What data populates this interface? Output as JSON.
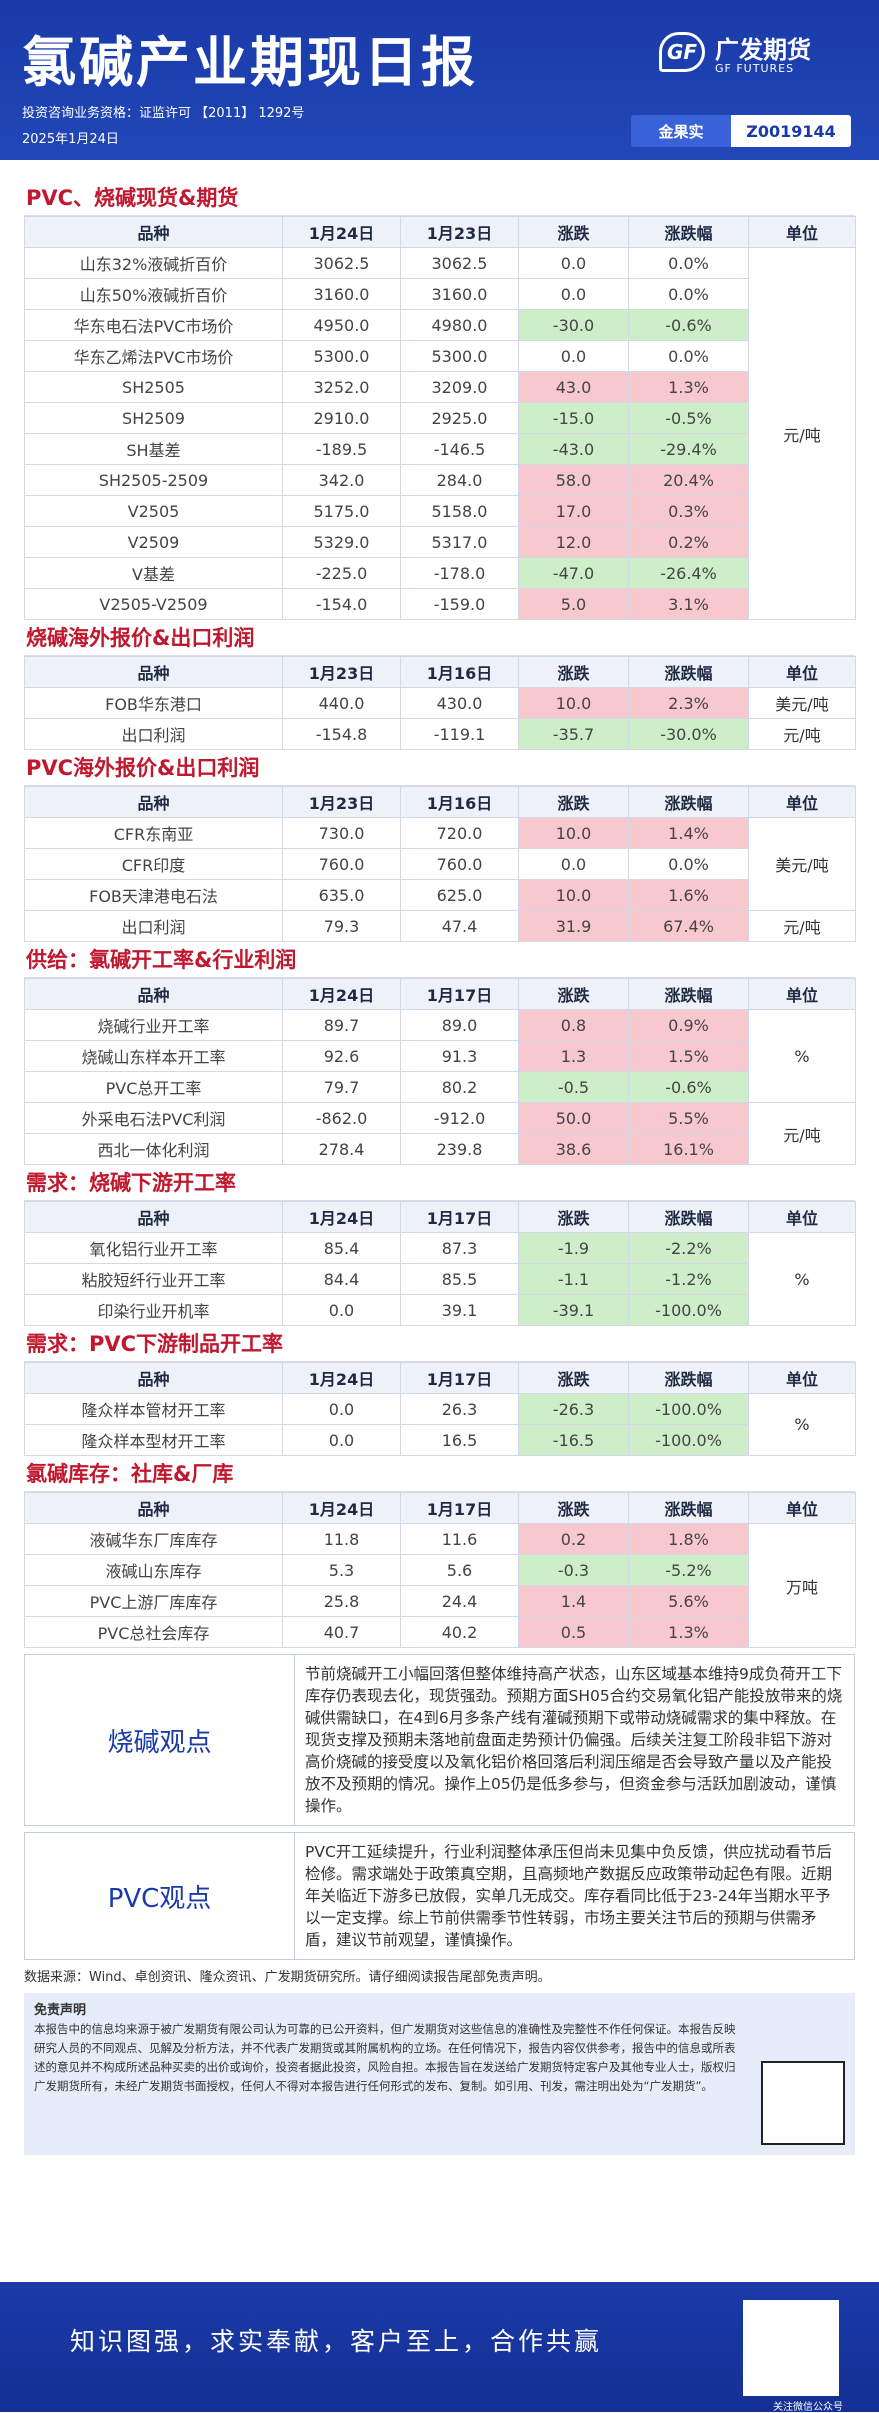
{
  "header": {
    "title": "氯碱产业期现日报",
    "license": "投资咨询业务资格：证监许可 【2011】 1292号",
    "date": "2025年1月24日",
    "logo_cn": "广发期货",
    "logo_en": "GF FUTURES",
    "analyst_label": "金果实",
    "analyst_id": "Z0019144"
  },
  "sections": [
    {
      "title": "PVC、烧碱现货&期货",
      "headers": [
        "品种",
        "1月24日",
        "1月23日",
        "涨跌",
        "涨跌幅",
        "单位"
      ],
      "unit": "元/吨",
      "rows": [
        {
          "name": "山东32%液碱折百价",
          "v1": "3062.5",
          "v2": "3062.5",
          "chg": "0.0",
          "pct": "0.0%",
          "dir": ""
        },
        {
          "name": "山东50%液碱折百价",
          "v1": "3160.0",
          "v2": "3160.0",
          "chg": "0.0",
          "pct": "0.0%",
          "dir": ""
        },
        {
          "name": "华东电石法PVC市场价",
          "v1": "4950.0",
          "v2": "4980.0",
          "chg": "-30.0",
          "pct": "-0.6%",
          "dir": "down"
        },
        {
          "name": "华东乙烯法PVC市场价",
          "v1": "5300.0",
          "v2": "5300.0",
          "chg": "0.0",
          "pct": "0.0%",
          "dir": ""
        },
        {
          "name": "SH2505",
          "v1": "3252.0",
          "v2": "3209.0",
          "chg": "43.0",
          "pct": "1.3%",
          "dir": "up"
        },
        {
          "name": "SH2509",
          "v1": "2910.0",
          "v2": "2925.0",
          "chg": "-15.0",
          "pct": "-0.5%",
          "dir": "down"
        },
        {
          "name": "SH基差",
          "v1": "-189.5",
          "v2": "-146.5",
          "chg": "-43.0",
          "pct": "-29.4%",
          "dir": "down"
        },
        {
          "name": "SH2505-2509",
          "v1": "342.0",
          "v2": "284.0",
          "chg": "58.0",
          "pct": "20.4%",
          "dir": "up"
        },
        {
          "name": "V2505",
          "v1": "5175.0",
          "v2": "5158.0",
          "chg": "17.0",
          "pct": "0.3%",
          "dir": "up"
        },
        {
          "name": "V2509",
          "v1": "5329.0",
          "v2": "5317.0",
          "chg": "12.0",
          "pct": "0.2%",
          "dir": "up"
        },
        {
          "name": "V基差",
          "v1": "-225.0",
          "v2": "-178.0",
          "chg": "-47.0",
          "pct": "-26.4%",
          "dir": "down"
        },
        {
          "name": "V2505-V2509",
          "v1": "-154.0",
          "v2": "-159.0",
          "chg": "5.0",
          "pct": "3.1%",
          "dir": "up"
        }
      ]
    },
    {
      "title": "烧碱海外报价&出口利润",
      "headers": [
        "品种",
        "1月23日",
        "1月16日",
        "涨跌",
        "涨跌幅",
        "单位"
      ],
      "rows": [
        {
          "name": "FOB华东港口",
          "v1": "440.0",
          "v2": "430.0",
          "chg": "10.0",
          "pct": "2.3%",
          "dir": "up",
          "unit": "美元/吨"
        },
        {
          "name": "出口利润",
          "v1": "-154.8",
          "v2": "-119.1",
          "chg": "-35.7",
          "pct": "-30.0%",
          "dir": "down",
          "unit": "元/吨"
        }
      ]
    },
    {
      "title": "PVC海外报价&出口利润",
      "headers": [
        "品种",
        "1月23日",
        "1月16日",
        "涨跌",
        "涨跌幅",
        "单位"
      ],
      "unit_a": "美元/吨",
      "unit_b": "元/吨",
      "rows": [
        {
          "name": "CFR东南亚",
          "v1": "730.0",
          "v2": "720.0",
          "chg": "10.0",
          "pct": "1.4%",
          "dir": "up"
        },
        {
          "name": "CFR印度",
          "v1": "760.0",
          "v2": "760.0",
          "chg": "0.0",
          "pct": "0.0%",
          "dir": ""
        },
        {
          "name": "FOB天津港电石法",
          "v1": "635.0",
          "v2": "625.0",
          "chg": "10.0",
          "pct": "1.6%",
          "dir": "up"
        },
        {
          "name": "出口利润",
          "v1": "79.3",
          "v2": "47.4",
          "chg": "31.9",
          "pct": "67.4%",
          "dir": "up"
        }
      ]
    },
    {
      "title": "供给：氯碱开工率&行业利润",
      "headers": [
        "品种",
        "1月24日",
        "1月17日",
        "涨跌",
        "涨跌幅",
        "单位"
      ],
      "unit_a": "%",
      "unit_b": "元/吨",
      "rows": [
        {
          "name": "烧碱行业开工率",
          "v1": "89.7",
          "v2": "89.0",
          "chg": "0.8",
          "pct": "0.9%",
          "dir": "up"
        },
        {
          "name": "烧碱山东样本开工率",
          "v1": "92.6",
          "v2": "91.3",
          "chg": "1.3",
          "pct": "1.5%",
          "dir": "up"
        },
        {
          "name": "PVC总开工率",
          "v1": "79.7",
          "v2": "80.2",
          "chg": "-0.5",
          "pct": "-0.6%",
          "dir": "down"
        },
        {
          "name": "外采电石法PVC利润",
          "v1": "-862.0",
          "v2": "-912.0",
          "chg": "50.0",
          "pct": "5.5%",
          "dir": "up"
        },
        {
          "name": "西北一体化利润",
          "v1": "278.4",
          "v2": "239.8",
          "chg": "38.6",
          "pct": "16.1%",
          "dir": "up"
        }
      ]
    },
    {
      "title": "需求：烧碱下游开工率",
      "headers": [
        "品种",
        "1月24日",
        "1月17日",
        "涨跌",
        "涨跌幅",
        "单位"
      ],
      "unit": "%",
      "rows": [
        {
          "name": "氧化铝行业开工率",
          "v1": "85.4",
          "v2": "87.3",
          "chg": "-1.9",
          "pct": "-2.2%",
          "dir": "down"
        },
        {
          "name": "粘胶短纤行业开工率",
          "v1": "84.4",
          "v2": "85.5",
          "chg": "-1.1",
          "pct": "-1.2%",
          "dir": "down"
        },
        {
          "name": "印染行业开机率",
          "v1": "0.0",
          "v2": "39.1",
          "chg": "-39.1",
          "pct": "-100.0%",
          "dir": "down"
        }
      ]
    },
    {
      "title": "需求：PVC下游制品开工率",
      "headers": [
        "品种",
        "1月24日",
        "1月17日",
        "涨跌",
        "涨跌幅",
        "单位"
      ],
      "unit": "%",
      "rows": [
        {
          "name": "隆众样本管材开工率",
          "v1": "0.0",
          "v2": "26.3",
          "chg": "-26.3",
          "pct": "-100.0%",
          "dir": "down"
        },
        {
          "name": "隆众样本型材开工率",
          "v1": "0.0",
          "v2": "16.5",
          "chg": "-16.5",
          "pct": "-100.0%",
          "dir": "down"
        }
      ]
    },
    {
      "title": "氯碱库存：社库&厂库",
      "headers": [
        "品种",
        "1月24日",
        "1月17日",
        "涨跌",
        "涨跌幅",
        "单位"
      ],
      "unit": "万吨",
      "rows": [
        {
          "name": "液碱华东厂库库存",
          "v1": "11.8",
          "v2": "11.6",
          "chg": "0.2",
          "pct": "1.8%",
          "dir": "up"
        },
        {
          "name": "液碱山东库存",
          "v1": "5.3",
          "v2": "5.6",
          "chg": "-0.3",
          "pct": "-5.2%",
          "dir": "down"
        },
        {
          "name": "PVC上游厂库库存",
          "v1": "25.8",
          "v2": "24.4",
          "chg": "1.4",
          "pct": "5.6%",
          "dir": "up"
        },
        {
          "name": "PVC总社会库存",
          "v1": "40.7",
          "v2": "40.2",
          "chg": "0.5",
          "pct": "1.3%",
          "dir": "up"
        }
      ]
    }
  ],
  "views": [
    {
      "label": "烧碱观点",
      "text": "节前烧碱开工小幅回落但整体维持高产状态，山东区域基本维持9成负荷开工下库存仍表现去化，现货强劲。预期方面SH05合约交易氧化铝产能投放带来的烧碱供需缺口，在4到6月多条产线有灌碱预期下或带动烧碱需求的集中释放。在现货支撑及预期未落地前盘面走势预计仍偏强。后续关注复工阶段非铝下游对高价烧碱的接受度以及氧化铝价格回落后利润压缩是否会导致产量以及产能投放不及预期的情况。操作上05仍是低多参与，但资金参与活跃加剧波动，谨慎操作。"
    },
    {
      "label": "PVC观点",
      "text": "PVC开工延续提升，行业利润整体承压但尚未见集中负反馈，供应扰动看节后检修。需求端处于政策真空期，且高频地产数据反应政策带动起色有限。近期年关临近下游多已放假，实单几无成交。库存看同比低于23-24年当期水平予以一定支撑。综上节前供需季节性转弱，市场主要关注节后的预期与供需矛盾，建议节前观望，谨慎操作。"
    }
  ],
  "source": "数据来源：Wind、卓创资讯、隆众资讯、广发期货研究所。请仔细阅读报告尾部免责声明。",
  "disclaimer": {
    "title": "免责声明",
    "text": "本报告中的信息均来源于被广发期货有限公司认为可靠的已公开资料，但广发期货对这些信息的准确性及完整性不作任何保证。本报告反映研究人员的不同观点、见解及分析方法，并不代表广发期货或其附属机构的立场。在任何情况下，报告内容仅供参考，报告中的信息或所表述的意见并不构成所述品种买卖的出价或询价，投资者据此投资，风险自担。本报告旨在发送给广发期货特定客户及其他专业人士，版权归广发期货所有，未经广发期货书面授权，任何人不得对本报告进行任何形式的发布、复制。如引用、刊发，需注明出处为“广发期货”。"
  },
  "footer": {
    "slogan": "知识图强，求实奉献，客户至上，合作共赢",
    "qr_label": "关注微信公众号"
  },
  "colors": {
    "brand": "#1a3aa8",
    "up": "#f8c8cf",
    "down": "#cdeec8",
    "section_title": "#c0182e"
  }
}
